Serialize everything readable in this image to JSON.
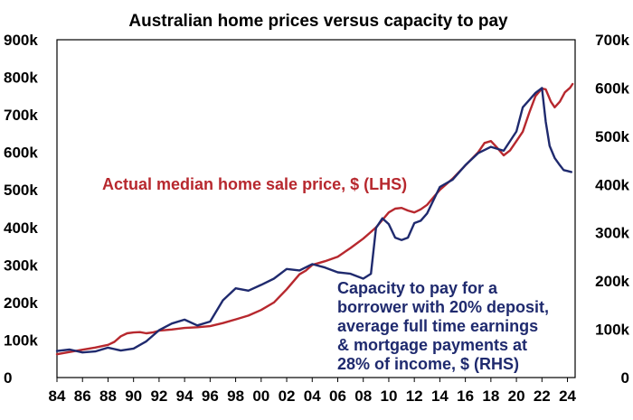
{
  "chart_data": {
    "type": "line",
    "title": "Australian home prices versus capacity to pay",
    "left_axis": {
      "ylim": [
        0,
        900000
      ],
      "ticks": [
        0,
        100000,
        200000,
        300000,
        400000,
        500000,
        600000,
        700000,
        800000,
        900000
      ],
      "tick_labels": [
        "0",
        "100k",
        "200k",
        "300k",
        "400k",
        "500k",
        "600k",
        "700k",
        "800k",
        "900k"
      ]
    },
    "right_axis": {
      "ylim": [
        0,
        700000
      ],
      "ticks": [
        0,
        100000,
        200000,
        300000,
        400000,
        500000,
        600000,
        700000
      ],
      "tick_labels": [
        "0",
        "100k",
        "200k",
        "300k",
        "400k",
        "500k",
        "600k",
        "700k"
      ]
    },
    "x_axis": {
      "xlim": [
        1984,
        2024.6
      ],
      "ticks": [
        1984,
        1986,
        1988,
        1990,
        1992,
        1994,
        1996,
        1998,
        2000,
        2002,
        2004,
        2006,
        2008,
        2010,
        2012,
        2014,
        2016,
        2018,
        2020,
        2022,
        2024
      ],
      "tick_labels": [
        "84",
        "86",
        "88",
        "90",
        "92",
        "94",
        "96",
        "98",
        "00",
        "02",
        "04",
        "06",
        "08",
        "10",
        "12",
        "14",
        "16",
        "18",
        "20",
        "22",
        "24"
      ]
    },
    "series": [
      {
        "name": "Actual median home sale price, $ (LHS)",
        "axis": "left",
        "color": "#B7282E",
        "points": [
          [
            1984.0,
            62000
          ],
          [
            1985.0,
            68000
          ],
          [
            1986.0,
            74000
          ],
          [
            1987.0,
            80000
          ],
          [
            1988.0,
            87000
          ],
          [
            1988.5,
            95000
          ],
          [
            1989.0,
            110000
          ],
          [
            1989.5,
            118000
          ],
          [
            1990.0,
            120000
          ],
          [
            1990.5,
            121000
          ],
          [
            1991.0,
            118000
          ],
          [
            1991.5,
            120000
          ],
          [
            1992.0,
            125000
          ],
          [
            1993.0,
            128000
          ],
          [
            1994.0,
            132000
          ],
          [
            1995.0,
            134000
          ],
          [
            1996.0,
            137000
          ],
          [
            1997.0,
            145000
          ],
          [
            1998.0,
            155000
          ],
          [
            1999.0,
            165000
          ],
          [
            2000.0,
            180000
          ],
          [
            2001.0,
            200000
          ],
          [
            2002.0,
            235000
          ],
          [
            2003.0,
            275000
          ],
          [
            2003.5,
            285000
          ],
          [
            2004.0,
            300000
          ],
          [
            2005.0,
            310000
          ],
          [
            2006.0,
            322000
          ],
          [
            2007.0,
            345000
          ],
          [
            2008.0,
            370000
          ],
          [
            2008.5,
            385000
          ],
          [
            2009.0,
            400000
          ],
          [
            2009.5,
            420000
          ],
          [
            2010.0,
            440000
          ],
          [
            2010.5,
            450000
          ],
          [
            2011.0,
            452000
          ],
          [
            2011.5,
            445000
          ],
          [
            2012.0,
            440000
          ],
          [
            2012.5,
            448000
          ],
          [
            2013.0,
            460000
          ],
          [
            2013.5,
            480000
          ],
          [
            2014.0,
            500000
          ],
          [
            2015.0,
            530000
          ],
          [
            2016.0,
            565000
          ],
          [
            2017.0,
            600000
          ],
          [
            2017.5,
            625000
          ],
          [
            2018.0,
            630000
          ],
          [
            2018.5,
            612000
          ],
          [
            2019.0,
            592000
          ],
          [
            2019.5,
            605000
          ],
          [
            2020.0,
            630000
          ],
          [
            2020.5,
            655000
          ],
          [
            2021.0,
            705000
          ],
          [
            2021.5,
            750000
          ],
          [
            2022.0,
            770000
          ],
          [
            2022.3,
            768000
          ],
          [
            2022.7,
            735000
          ],
          [
            2023.0,
            720000
          ],
          [
            2023.4,
            735000
          ],
          [
            2023.8,
            760000
          ],
          [
            2024.2,
            772000
          ],
          [
            2024.4,
            782000
          ]
        ]
      },
      {
        "name": "Capacity to pay for a borrower with 20% deposit, average full time earnings & mortgage payments at 28% of income, $ (RHS)",
        "axis": "right",
        "color": "#1F2A6E",
        "points": [
          [
            1984.0,
            55000
          ],
          [
            1985.0,
            58000
          ],
          [
            1986.0,
            52000
          ],
          [
            1987.0,
            54000
          ],
          [
            1988.0,
            62000
          ],
          [
            1989.0,
            56000
          ],
          [
            1990.0,
            60000
          ],
          [
            1991.0,
            75000
          ],
          [
            1992.0,
            98000
          ],
          [
            1993.0,
            112000
          ],
          [
            1994.0,
            120000
          ],
          [
            1995.0,
            108000
          ],
          [
            1996.0,
            116000
          ],
          [
            1997.0,
            160000
          ],
          [
            1998.0,
            185000
          ],
          [
            1999.0,
            180000
          ],
          [
            2000.0,
            192000
          ],
          [
            2001.0,
            205000
          ],
          [
            2002.0,
            225000
          ],
          [
            2003.0,
            222000
          ],
          [
            2004.0,
            235000
          ],
          [
            2005.0,
            228000
          ],
          [
            2006.0,
            218000
          ],
          [
            2007.0,
            215000
          ],
          [
            2008.0,
            205000
          ],
          [
            2008.6,
            215000
          ],
          [
            2009.0,
            310000
          ],
          [
            2009.5,
            330000
          ],
          [
            2010.0,
            318000
          ],
          [
            2010.5,
            290000
          ],
          [
            2011.0,
            285000
          ],
          [
            2011.5,
            290000
          ],
          [
            2012.0,
            320000
          ],
          [
            2012.5,
            325000
          ],
          [
            2013.0,
            340000
          ],
          [
            2014.0,
            395000
          ],
          [
            2015.0,
            410000
          ],
          [
            2016.0,
            440000
          ],
          [
            2017.0,
            465000
          ],
          [
            2018.0,
            478000
          ],
          [
            2019.0,
            470000
          ],
          [
            2020.0,
            510000
          ],
          [
            2020.5,
            560000
          ],
          [
            2021.0,
            575000
          ],
          [
            2021.5,
            590000
          ],
          [
            2022.0,
            600000
          ],
          [
            2022.3,
            530000
          ],
          [
            2022.6,
            480000
          ],
          [
            2023.0,
            455000
          ],
          [
            2023.4,
            440000
          ],
          [
            2023.7,
            430000
          ],
          [
            2024.0,
            428000
          ],
          [
            2024.3,
            426000
          ]
        ]
      }
    ],
    "annotations": {
      "lhs_label": "Actual median home sale price, $ (LHS)",
      "rhs_label_lines": [
        "Capacity to pay for a",
        "borrower with 20% deposit,",
        "average full time earnings",
        "& mortgage payments at",
        "28% of income, $ (RHS)"
      ]
    },
    "grid": false,
    "legend": "none"
  }
}
